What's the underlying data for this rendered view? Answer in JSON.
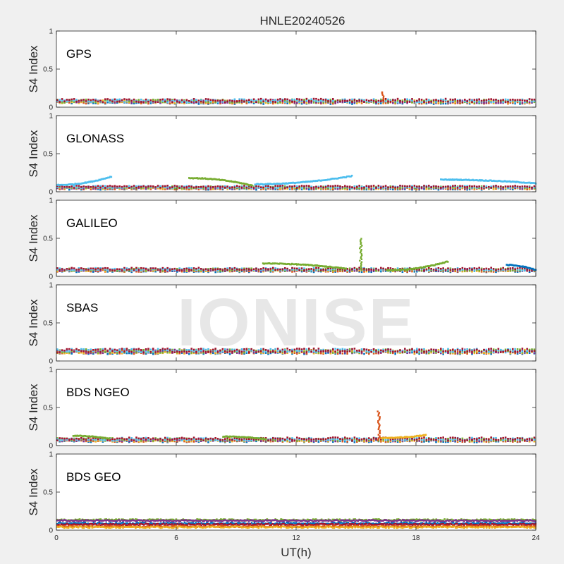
{
  "chart_data": {
    "type": "scatter",
    "title": "HNLE20240526",
    "xlabel": "UT(h)",
    "ylabel": "S4 Index",
    "xlim": [
      0,
      24
    ],
    "ylim": [
      0,
      1
    ],
    "xticks": [
      0,
      6,
      12,
      18,
      24
    ],
    "yticks": [
      0,
      0.5,
      1
    ],
    "ytick_labels": [
      "0",
      "0.5",
      "1"
    ],
    "watermark": "IONISE",
    "series_colors": [
      "#0072BD",
      "#D95319",
      "#EDB120",
      "#7E2F8E",
      "#77AC30",
      "#4DBEEE",
      "#A2142F"
    ],
    "panels": [
      {
        "label": "GPS",
        "baseline": 0.07,
        "noise": 0.045,
        "arcs": [],
        "spikes": [
          {
            "x": 16.3,
            "y": 0.2,
            "color": "#D95319"
          }
        ]
      },
      {
        "label": "GLONASS",
        "baseline": 0.05,
        "noise": 0.03,
        "arcs": [
          {
            "x0": 0.0,
            "x1": 2.7,
            "y0": 0.09,
            "y1": 0.2,
            "color": "#4DBEEE"
          },
          {
            "x0": 6.6,
            "x1": 9.8,
            "y0": 0.18,
            "y1": 0.08,
            "color": "#77AC30"
          },
          {
            "x0": 9.9,
            "x1": 14.8,
            "y0": 0.1,
            "y1": 0.21,
            "color": "#4DBEEE"
          },
          {
            "x0": 19.2,
            "x1": 24.0,
            "y0": 0.16,
            "y1": 0.11,
            "color": "#4DBEEE"
          }
        ],
        "spikes": []
      },
      {
        "label": "GALILEO",
        "baseline": 0.08,
        "noise": 0.035,
        "arcs": [
          {
            "x0": 10.3,
            "x1": 14.5,
            "y0": 0.17,
            "y1": 0.1,
            "color": "#77AC30"
          },
          {
            "x0": 16.5,
            "x1": 19.6,
            "y0": 0.08,
            "y1": 0.2,
            "color": "#77AC30"
          },
          {
            "x0": 22.5,
            "x1": 24.0,
            "y0": 0.15,
            "y1": 0.08,
            "color": "#0072BD"
          }
        ],
        "spikes": [
          {
            "x": 15.2,
            "y": 0.5,
            "color": "#77AC30"
          }
        ]
      },
      {
        "label": "SBAS",
        "baseline": 0.12,
        "noise": 0.05,
        "arcs": [],
        "spikes": []
      },
      {
        "label": "BDS NGEO",
        "baseline": 0.07,
        "noise": 0.04,
        "arcs": [
          {
            "x0": 0.8,
            "x1": 2.6,
            "y0": 0.13,
            "y1": 0.09,
            "color": "#77AC30"
          },
          {
            "x0": 8.3,
            "x1": 10.5,
            "y0": 0.12,
            "y1": 0.08,
            "color": "#77AC30"
          },
          {
            "x0": 16.2,
            "x1": 18.5,
            "y0": 0.1,
            "y1": 0.14,
            "color": "#EDB120"
          }
        ],
        "spikes": [
          {
            "x": 16.1,
            "y": 0.46,
            "color": "#D95319"
          }
        ]
      },
      {
        "label": "BDS GEO",
        "baseline": 0.08,
        "noise": 0.02,
        "arcs": [],
        "spikes": [],
        "flat_levels": [
          {
            "y": 0.135,
            "color": "#77AC30"
          },
          {
            "y": 0.125,
            "color": "#7E2F8E"
          },
          {
            "y": 0.09,
            "color": "#0072BD"
          },
          {
            "y": 0.075,
            "color": "#A2142F"
          },
          {
            "y": 0.05,
            "color": "#D95319"
          },
          {
            "y": 0.04,
            "color": "#EDB120"
          }
        ]
      }
    ]
  }
}
